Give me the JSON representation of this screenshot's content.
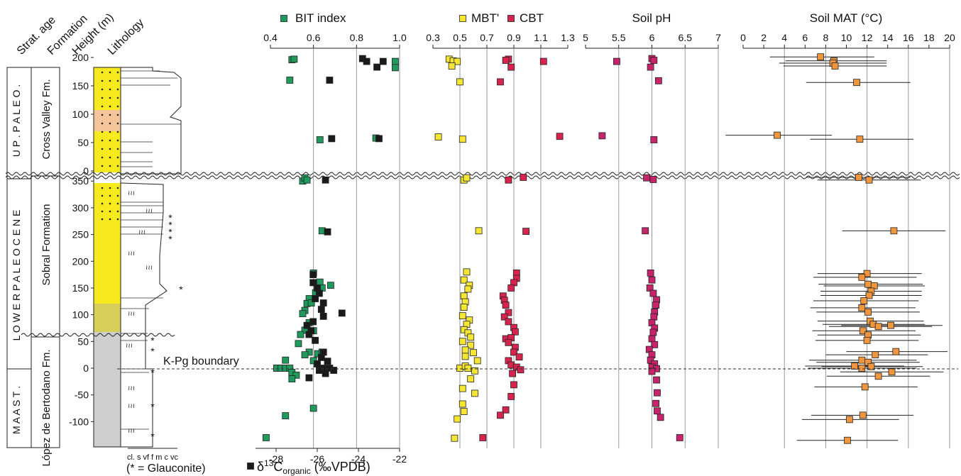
{
  "colors": {
    "bit": "#1f9a5c",
    "d13c": "#1a1a1a",
    "mbt": "#f5e634",
    "cbt": "#d6244f",
    "ph": "#c8246b",
    "mat": "#f0963c",
    "yellow": "#f7ea1e",
    "gray": "#cfcfcf",
    "orange": "#f4c49a"
  },
  "strat": {
    "headers": {
      "age": "Strat. age",
      "formation": "Formation",
      "height": "Height (m)",
      "lithology": "Lithology"
    },
    "ages": {
      "upper": "U P .   P A L E O .",
      "lower": "L O W E R   P A L E O C E N E",
      "maast": "M A A S T ."
    },
    "formations": {
      "cross": "Cross Valley Fm.",
      "sobral": "Sobral Formation",
      "lopez": "López de Bertodano Fm."
    },
    "upper_ticks": [
      "200",
      "150",
      "100",
      "50",
      "0"
    ],
    "lower_ticks": [
      "350",
      "300",
      "250",
      "200",
      "150",
      "100",
      "50",
      "0",
      "-50",
      "-100"
    ],
    "grain_label": "cl. s vf f m c vc",
    "glauconite_note": "(* = Glauconite)",
    "kpg_label": "K-Pg boundary"
  },
  "chart_data": [
    {
      "type": "scatter",
      "id": "bit",
      "x_top": {
        "title": "BIT index",
        "ticks": [
          "0.4",
          "0.6",
          "0.8",
          "1.0"
        ],
        "range": [
          0.4,
          1.0
        ]
      },
      "x_bottom": {
        "title": "δ13C organic (‰VPDB)",
        "ticks": [
          "-28",
          "-26",
          "-24",
          "-22"
        ],
        "range": [
          -29,
          -22
        ]
      },
      "series": [
        {
          "name": "BIT index",
          "axis": "top",
          "points": [
            [
              0.5,
              196
            ],
            [
              0.51,
              197
            ],
            [
              0.49,
              160
            ],
            [
              0.98,
              193
            ],
            [
              0.98,
              182
            ],
            [
              0.63,
              55
            ],
            [
              0.89,
              58
            ],
            [
              0.55,
              350
            ],
            [
              0.56,
              356
            ],
            [
              0.57,
              352
            ],
            [
              0.64,
              257
            ],
            [
              0.6,
              178
            ],
            [
              0.63,
              161
            ],
            [
              0.64,
              150
            ],
            [
              0.68,
              155
            ],
            [
              0.61,
              141
            ],
            [
              0.58,
              130
            ],
            [
              0.57,
              121
            ],
            [
              0.59,
              122
            ],
            [
              0.56,
              108
            ],
            [
              0.55,
              102
            ],
            [
              0.58,
              85
            ],
            [
              0.56,
              71
            ],
            [
              0.6,
              70
            ],
            [
              0.54,
              63
            ],
            [
              0.53,
              46
            ],
            [
              0.58,
              30
            ],
            [
              0.56,
              25
            ],
            [
              0.6,
              14
            ],
            [
              0.62,
              27
            ],
            [
              0.64,
              30
            ],
            [
              0.47,
              15
            ],
            [
              0.43,
              0
            ],
            [
              0.43,
              0
            ],
            [
              0.45,
              0
            ],
            [
              0.47,
              0
            ],
            [
              0.49,
              0
            ],
            [
              0.5,
              -8
            ],
            [
              0.52,
              -13
            ],
            [
              0.5,
              -20
            ],
            [
              0.6,
              -75
            ],
            [
              0.47,
              -89
            ],
            [
              0.38,
              -130
            ]
          ]
        },
        {
          "name": "δ13C organic",
          "axis": "bottom",
          "points": [
            [
              -23.8,
              198
            ],
            [
              -23.6,
              193
            ],
            [
              -22.8,
              193
            ],
            [
              -23.1,
              183
            ],
            [
              -25.4,
              160
            ],
            [
              -25.3,
              57
            ],
            [
              -23.0,
              57
            ],
            [
              -25.6,
              352
            ],
            [
              -25.5,
              255
            ],
            [
              -26.2,
              175
            ],
            [
              -26.2,
              160
            ],
            [
              -26.0,
              150
            ],
            [
              -25.9,
              140
            ],
            [
              -26.1,
              130
            ],
            [
              -25.7,
              122
            ],
            [
              -25.8,
              110
            ],
            [
              -24.8,
              103
            ],
            [
              -25.7,
              97
            ],
            [
              -26.2,
              87
            ],
            [
              -26.5,
              80
            ],
            [
              -26.3,
              70
            ],
            [
              -26.4,
              63
            ],
            [
              -26.1,
              52
            ],
            [
              -25.7,
              30
            ],
            [
              -25.8,
              20
            ],
            [
              -25.5,
              13
            ],
            [
              -25.7,
              0
            ],
            [
              -25.4,
              0
            ],
            [
              -25.9,
              -4
            ],
            [
              -25.6,
              -10
            ],
            [
              -26.0,
              8
            ],
            [
              -25.2,
              -4
            ],
            [
              -26.4,
              -18
            ]
          ]
        }
      ]
    },
    {
      "type": "scatter",
      "id": "mbt_cbt",
      "x_top": {
        "title_a": "MBT'",
        "title_b": "CBT",
        "ticks": [
          "0.3",
          "0.5",
          "0.7",
          "0.9",
          "1.1",
          "1.3"
        ],
        "range": [
          0.3,
          1.3
        ]
      },
      "series": [
        {
          "name": "MBT'",
          "points": [
            [
              0.42,
              197
            ],
            [
              0.45,
              194
            ],
            [
              0.48,
              193
            ],
            [
              0.44,
              185
            ],
            [
              0.5,
              157
            ],
            [
              0.34,
              60
            ],
            [
              0.52,
              56
            ],
            [
              0.53,
              352
            ],
            [
              0.55,
              356
            ],
            [
              0.64,
              257
            ],
            [
              0.55,
              180
            ],
            [
              0.53,
              165
            ],
            [
              0.57,
              155
            ],
            [
              0.56,
              148
            ],
            [
              0.53,
              135
            ],
            [
              0.54,
              124
            ],
            [
              0.53,
              114
            ],
            [
              0.52,
              98
            ],
            [
              0.57,
              90
            ],
            [
              0.55,
              82
            ],
            [
              0.53,
              72
            ],
            [
              0.56,
              66
            ],
            [
              0.58,
              58
            ],
            [
              0.52,
              50
            ],
            [
              0.58,
              43
            ],
            [
              0.54,
              34
            ],
            [
              0.6,
              29
            ],
            [
              0.54,
              22
            ],
            [
              0.63,
              14
            ],
            [
              0.5,
              0
            ],
            [
              0.54,
              4
            ],
            [
              0.56,
              0
            ],
            [
              0.61,
              -5
            ],
            [
              0.58,
              -20
            ],
            [
              0.52,
              -38
            ],
            [
              0.61,
              -47
            ],
            [
              0.52,
              -67
            ],
            [
              0.53,
              -81
            ],
            [
              0.48,
              -95
            ],
            [
              0.46,
              -131
            ]
          ]
        },
        {
          "name": "CBT",
          "points": [
            [
              0.86,
              197
            ],
            [
              0.84,
              195
            ],
            [
              1.12,
              193
            ],
            [
              0.88,
              183
            ],
            [
              0.8,
              157
            ],
            [
              1.24,
              61
            ],
            [
              0.84,
              55
            ],
            [
              0.97,
              357
            ],
            [
              0.86,
              352
            ],
            [
              0.99,
              256
            ],
            [
              0.92,
              178
            ],
            [
              0.92,
              168
            ],
            [
              0.9,
              160
            ],
            [
              0.88,
              150
            ],
            [
              0.82,
              135
            ],
            [
              0.83,
              127
            ],
            [
              0.84,
              118
            ],
            [
              0.86,
              104
            ],
            [
              0.83,
              96
            ],
            [
              0.86,
              87
            ],
            [
              0.9,
              76
            ],
            [
              0.91,
              68
            ],
            [
              0.88,
              57
            ],
            [
              0.86,
              48
            ],
            [
              0.91,
              39
            ],
            [
              0.9,
              30
            ],
            [
              0.94,
              21
            ],
            [
              0.86,
              14
            ],
            [
              0.88,
              6
            ],
            [
              0.92,
              2
            ],
            [
              0.95,
              -3
            ],
            [
              0.89,
              -10
            ],
            [
              0.9,
              -31
            ],
            [
              0.88,
              -53
            ],
            [
              0.84,
              -78
            ],
            [
              0.8,
              -88
            ],
            [
              0.67,
              -130
            ]
          ]
        }
      ]
    },
    {
      "type": "scatter",
      "id": "ph",
      "x_top": {
        "title": "Soil pH",
        "ticks": [
          "5",
          "5.5",
          "6",
          "6.5",
          "7"
        ],
        "range": [
          5,
          7
        ]
      },
      "series": [
        {
          "name": "Soil pH",
          "points": [
            [
              6.0,
              198
            ],
            [
              6.03,
              195
            ],
            [
              5.47,
              193
            ],
            [
              5.98,
              183
            ],
            [
              6.1,
              159
            ],
            [
              5.25,
              62
            ],
            [
              6.03,
              55
            ],
            [
              5.92,
              356
            ],
            [
              6.02,
              353
            ],
            [
              5.9,
              257
            ],
            [
              5.98,
              178
            ],
            [
              6.0,
              165
            ],
            [
              5.97,
              150
            ],
            [
              6.02,
              140
            ],
            [
              6.07,
              128
            ],
            [
              6.06,
              118
            ],
            [
              6.04,
              105
            ],
            [
              6.03,
              96
            ],
            [
              6.0,
              85
            ],
            [
              6.04,
              75
            ],
            [
              6.02,
              67
            ],
            [
              6.0,
              55
            ],
            [
              6.04,
              44
            ],
            [
              5.96,
              35
            ],
            [
              6.0,
              25
            ],
            [
              5.98,
              15
            ],
            [
              6.04,
              8
            ],
            [
              6.0,
              2
            ],
            [
              6.07,
              -1
            ],
            [
              6.0,
              -6
            ],
            [
              6.07,
              -22
            ],
            [
              6.08,
              -46
            ],
            [
              6.06,
              -66
            ],
            [
              6.08,
              -80
            ],
            [
              6.13,
              -92
            ],
            [
              6.42,
              -130
            ]
          ]
        }
      ]
    },
    {
      "type": "scatter",
      "id": "mat",
      "x_top": {
        "title": "Soil MAT (°C)",
        "ticks": [
          "0",
          "2",
          "4",
          "6",
          "8",
          "10",
          "12",
          "14",
          "16",
          "18",
          "20"
        ],
        "range": [
          0,
          20
        ]
      },
      "series": [
        {
          "name": "Soil MAT",
          "points": [
            [
              7.5,
              201,
              2.6,
              12.7
            ],
            [
              8.8,
              194,
              4.1,
              13.9
            ],
            [
              8.7,
              190,
              3.5,
              13.9
            ],
            [
              8.9,
              185,
              3.9,
              13.9
            ],
            [
              11.0,
              156,
              6.1,
              16.2
            ],
            [
              3.3,
              63,
              -1.7,
              8.6
            ],
            [
              11.3,
              56,
              6.5,
              16.5
            ],
            [
              11.2,
              357,
              6.1,
              16.2
            ],
            [
              12.2,
              352,
              7.2,
              17.2
            ],
            [
              14.6,
              257,
              9.6,
              19.6
            ],
            [
              12.0,
              177,
              7.2,
              17.3
            ],
            [
              11.5,
              170,
              6.8,
              16.8
            ],
            [
              12.1,
              157,
              7.3,
              17.4
            ],
            [
              12.7,
              154,
              7.8,
              17.6
            ],
            [
              12.4,
              144,
              7.5,
              17.3
            ],
            [
              12.2,
              136,
              7.5,
              17.3
            ],
            [
              11.7,
              126,
              6.8,
              17.0
            ],
            [
              11.5,
              113,
              6.5,
              16.7
            ],
            [
              12.1,
              105,
              7.1,
              17.1
            ],
            [
              12.3,
              88,
              7.2,
              17.5
            ],
            [
              12.6,
              82,
              7.7,
              17.6
            ],
            [
              14.3,
              80,
              9.5,
              19.3
            ],
            [
              13.1,
              78,
              8.3,
              18.3
            ],
            [
              11.6,
              70,
              6.7,
              16.7
            ],
            [
              12.1,
              62,
              7.2,
              17.2
            ],
            [
              12.0,
              52,
              7.0,
              17.0
            ],
            [
              14.8,
              31,
              10.0,
              19.8
            ],
            [
              12.8,
              25,
              8.0,
              17.9
            ],
            [
              11.5,
              15,
              6.4,
              16.8
            ],
            [
              12.1,
              11,
              7.1,
              17.1
            ],
            [
              10.8,
              4,
              6.0,
              15.6
            ],
            [
              11.5,
              0,
              6.3,
              16.8
            ],
            [
              12.4,
              3,
              7.6,
              17.4
            ],
            [
              14.4,
              -7,
              9.4,
              19.4
            ],
            [
              13.1,
              -15,
              8.1,
              18.1
            ],
            [
              11.8,
              -35,
              6.9,
              16.9
            ],
            [
              11.6,
              -88,
              6.6,
              16.5
            ],
            [
              10.3,
              -96,
              5.7,
              15.1
            ],
            [
              10.1,
              -135,
              5.2,
              15.0
            ]
          ]
        }
      ]
    }
  ]
}
